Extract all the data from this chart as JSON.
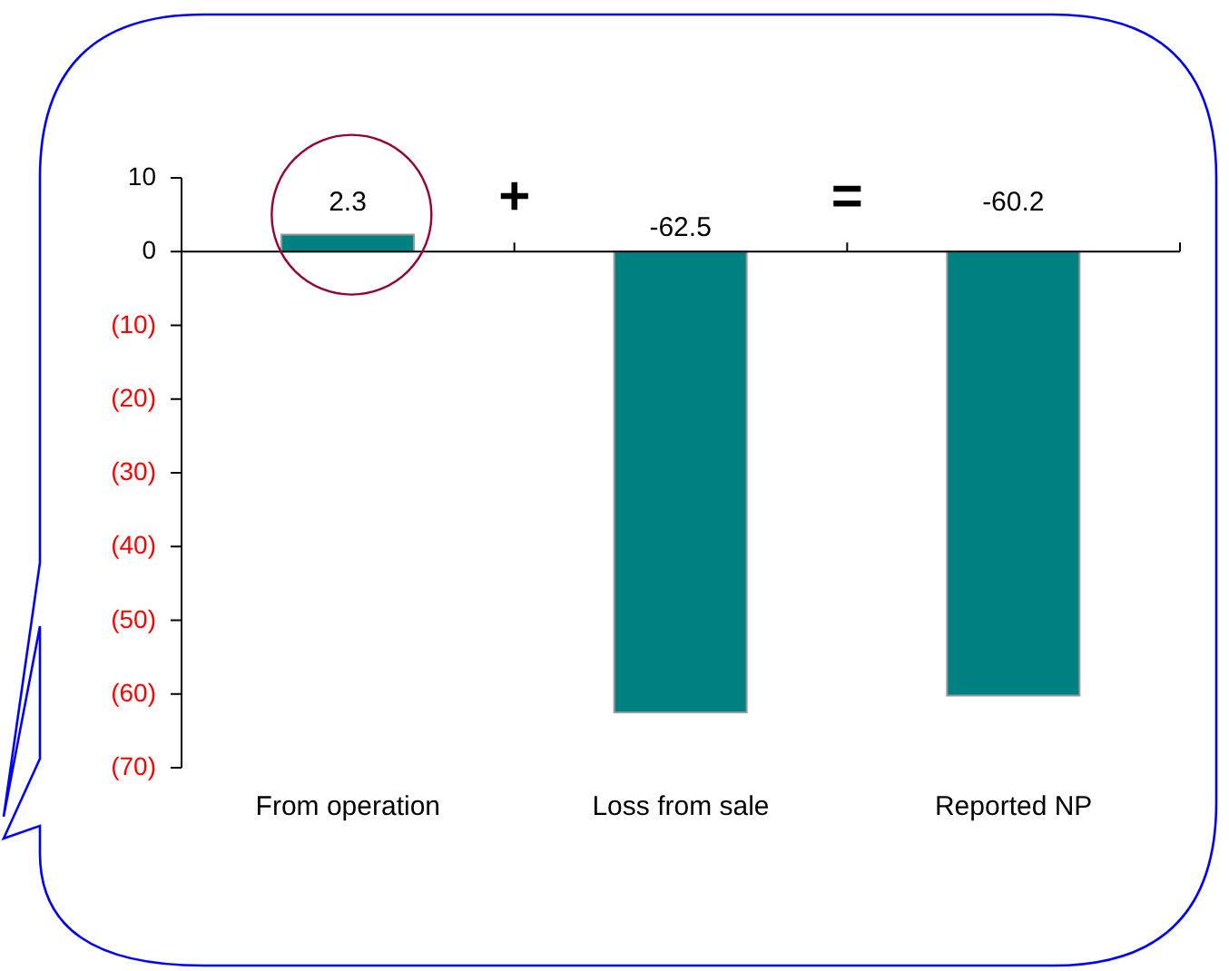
{
  "chart_data": {
    "type": "bar",
    "categories": [
      "From operation",
      "Loss from sale",
      "Reported NP"
    ],
    "values": [
      2.3,
      -62.5,
      -60.2
    ],
    "color": "#008080",
    "ylim": [
      -70,
      10
    ],
    "yticks": [
      10,
      0,
      {
        "value": -10,
        "label": "(10)"
      },
      {
        "value": -20,
        "label": "(20)"
      },
      {
        "value": -30,
        "label": "(30)"
      },
      {
        "value": -40,
        "label": "(40)"
      },
      {
        "value": -50,
        "label": "(50)"
      },
      {
        "value": -60,
        "label": "(60)"
      },
      {
        "value": -70,
        "label": "(70)"
      }
    ],
    "data_labels": true,
    "annotations": [
      "+",
      "="
    ]
  }
}
